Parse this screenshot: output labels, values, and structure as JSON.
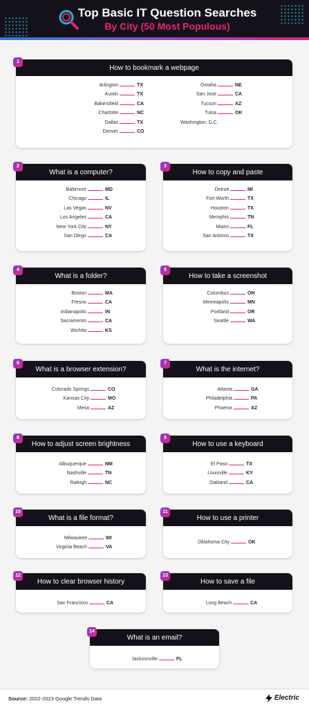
{
  "header": {
    "title": "Top Basic IT Question Searches",
    "subtitle": "By City (50 Most Populous)"
  },
  "cards": [
    {
      "num": "1",
      "title": "How to bookmark a webpage",
      "columns": [
        [
          [
            "Arlington",
            "TX"
          ],
          [
            "Austin",
            "TX"
          ],
          [
            "Bakersfield",
            "CA"
          ],
          [
            "Charlotte",
            "NC"
          ],
          [
            "Dallas",
            "TX"
          ],
          [
            "Denver",
            "CO"
          ]
        ],
        [
          [
            "Omaha",
            "NE"
          ],
          [
            "San Jose",
            "CA"
          ],
          [
            "Tucson",
            "AZ"
          ],
          [
            "Tulsa",
            "OK"
          ],
          [
            "Washington, D.C.",
            ""
          ]
        ]
      ]
    },
    {
      "num": "2",
      "title": "What is a computer?",
      "columns": [
        [
          [
            "Baltimore",
            "MD"
          ],
          [
            "Chicago",
            "IL"
          ],
          [
            "Las Vegas",
            "NV"
          ],
          [
            "Los Angeles",
            "CA"
          ],
          [
            "New York City",
            "NY"
          ],
          [
            "San Diego",
            "CA"
          ]
        ]
      ]
    },
    {
      "num": "3",
      "title": "How to copy and paste",
      "columns": [
        [
          [
            "Detroit",
            "MI"
          ],
          [
            "Fort Worth",
            "TX"
          ],
          [
            "Houston",
            "TX"
          ],
          [
            "Memphis",
            "TN"
          ],
          [
            "Miami",
            "FL"
          ],
          [
            "San Antonio",
            "TX"
          ]
        ]
      ]
    },
    {
      "num": "4",
      "title": "What is a folder?",
      "columns": [
        [
          [
            "Boston",
            "MA"
          ],
          [
            "Fresno",
            "CA"
          ],
          [
            "Indianapolis",
            "IN"
          ],
          [
            "Sacramento",
            "CA"
          ],
          [
            "Wichita",
            "KS"
          ]
        ]
      ]
    },
    {
      "num": "5",
      "title": "How to take a screenshot",
      "columns": [
        [
          [
            "Columbus",
            "OH"
          ],
          [
            "Minneapolis",
            "MN"
          ],
          [
            "Portland",
            "OR"
          ],
          [
            "Seattle",
            "WA"
          ]
        ]
      ]
    },
    {
      "num": "6",
      "title": "What is a browser extension?",
      "columns": [
        [
          [
            "Colorado Springs",
            "CO"
          ],
          [
            "Kansas City",
            "MO"
          ],
          [
            "Mesa",
            "AZ"
          ]
        ]
      ]
    },
    {
      "num": "7",
      "title": "What is the internet?",
      "columns": [
        [
          [
            "Atlanta",
            "GA"
          ],
          [
            "Philadelphia",
            "PA"
          ],
          [
            "Phoenix",
            "AZ"
          ]
        ]
      ]
    },
    {
      "num": "8",
      "title": "How to adjust screen brightness",
      "columns": [
        [
          [
            "Albuquerque",
            "NM"
          ],
          [
            "Nashville",
            "TN"
          ],
          [
            "Raleigh",
            "NC"
          ]
        ]
      ]
    },
    {
      "num": "9",
      "title": "How to use a keyboard",
      "columns": [
        [
          [
            "El Paso",
            "TX"
          ],
          [
            "Louisville",
            "KY"
          ],
          [
            "Oakland",
            "CA"
          ]
        ]
      ]
    },
    {
      "num": "10",
      "title": "What is a file format?",
      "columns": [
        [
          [
            "Milwaukee",
            "WI"
          ],
          [
            "Virginia Beach",
            "VA"
          ]
        ]
      ]
    },
    {
      "num": "11",
      "title": "How to use a printer",
      "columns": [
        [
          [
            "Oklahoma City",
            "OK"
          ]
        ]
      ]
    },
    {
      "num": "12",
      "title": "How to clear browser history",
      "columns": [
        [
          [
            "San Francisco",
            "CA"
          ]
        ]
      ]
    },
    {
      "num": "13",
      "title": "How to save a file",
      "columns": [
        [
          [
            "Long Beach",
            "CA"
          ]
        ]
      ]
    },
    {
      "num": "14",
      "title": "What is an email?",
      "columns": [
        [
          [
            "Jacksonville",
            "FL"
          ]
        ]
      ]
    }
  ],
  "footer": {
    "source_label": "Source:",
    "source_text": "2022-2023 Google Trends Data",
    "brand": "Electric"
  },
  "colors": {
    "accent": "#e0247a",
    "dark": "#15111a",
    "subtitle": "#e8237c"
  }
}
